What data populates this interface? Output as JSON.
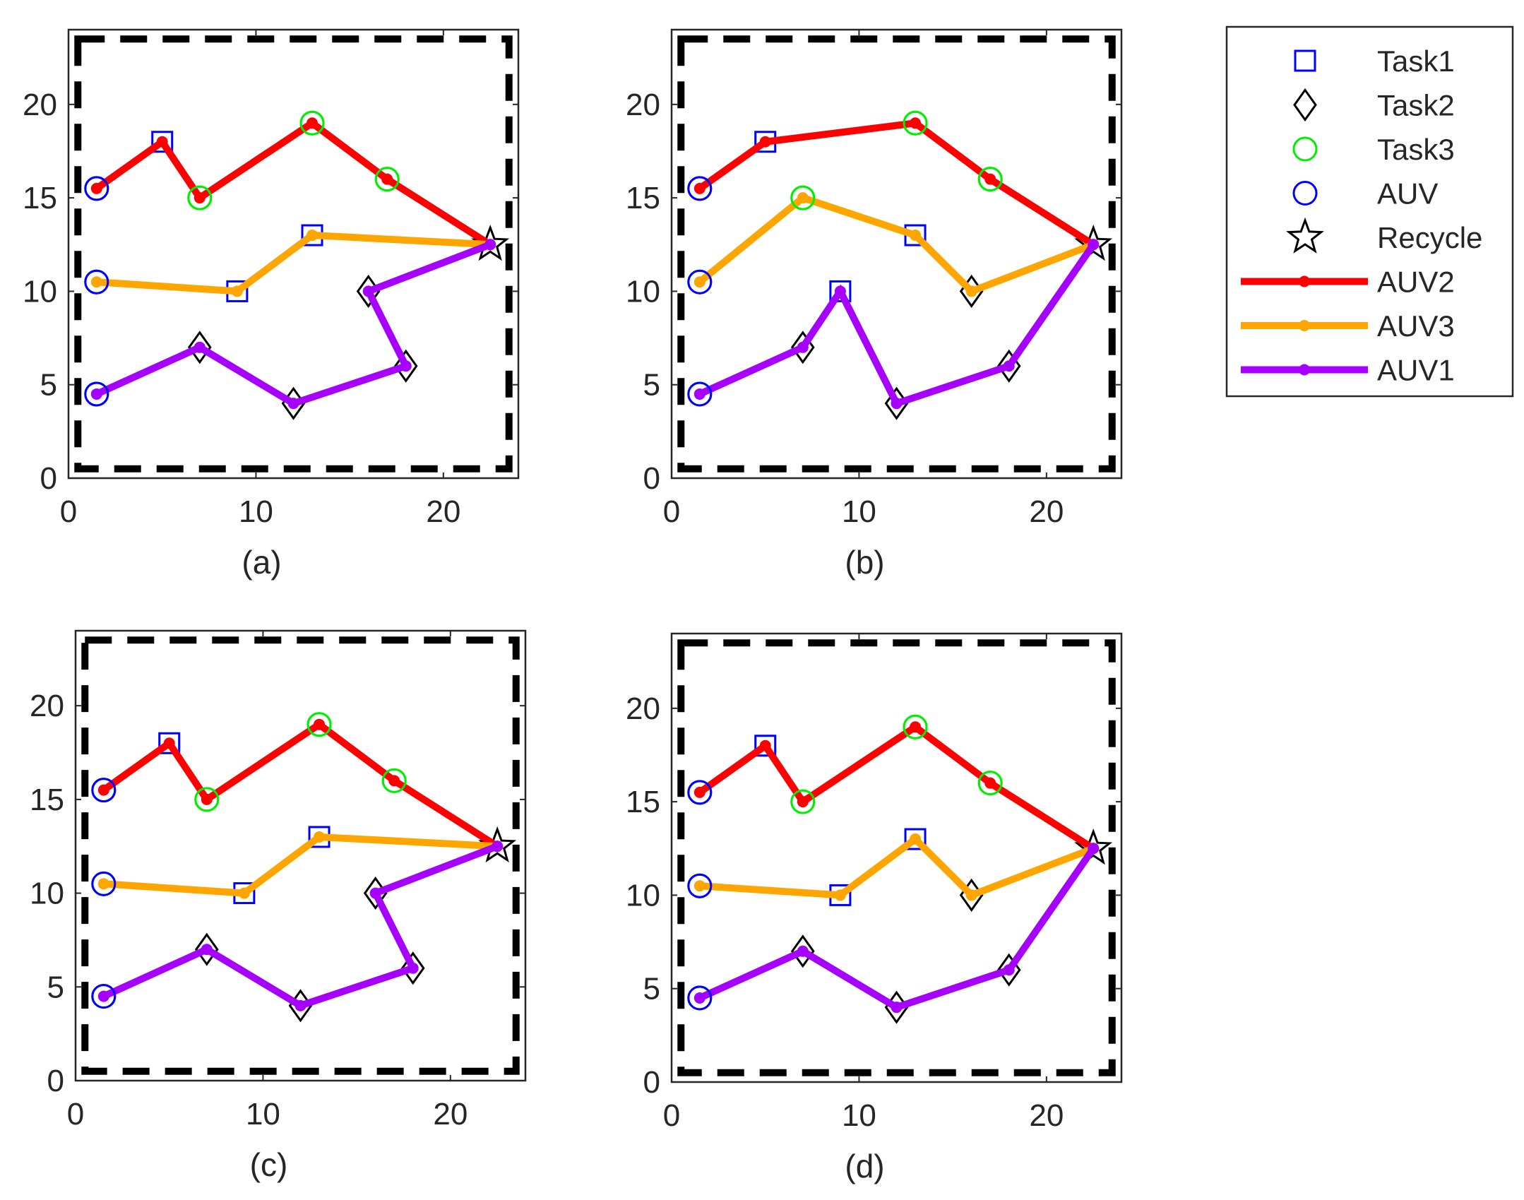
{
  "chart_data": {
    "type": "line",
    "title": "",
    "grid": false,
    "legend_position": "top-right",
    "colors": {
      "auv2": "#ff0000",
      "auv3": "#ffa500",
      "auv1": "#a600ff",
      "task1": "#0000ff",
      "task2": "#000000",
      "task3": "#00ee00",
      "auv_marker": "#0000ff",
      "recycle": "#000000",
      "boundary": "#000000"
    },
    "legend": [
      {
        "label": "Task1",
        "kind": "marker",
        "marker": "square",
        "color": "#0000ff"
      },
      {
        "label": "Task2",
        "kind": "marker",
        "marker": "diamond",
        "color": "#000000"
      },
      {
        "label": "Task3",
        "kind": "marker",
        "marker": "circle",
        "color": "#00ee00"
      },
      {
        "label": "AUV",
        "kind": "marker",
        "marker": "circle",
        "color": "#0000ff"
      },
      {
        "label": "Recycle",
        "kind": "marker",
        "marker": "star",
        "color": "#000000"
      },
      {
        "label": "AUV2",
        "kind": "line",
        "color": "#ff0000"
      },
      {
        "label": "AUV3",
        "kind": "line",
        "color": "#ffa500"
      },
      {
        "label": "AUV1",
        "kind": "line",
        "color": "#a600ff"
      }
    ],
    "panels": [
      {
        "label": "(a)",
        "xlim": [
          0,
          24
        ],
        "ylim": [
          0,
          24
        ],
        "xticks": [
          0,
          10,
          20
        ],
        "yticks": [
          0,
          5,
          10,
          15,
          20
        ],
        "boundary": {
          "x": [
            0.5,
            23.5
          ],
          "y": [
            0.5,
            23.5
          ]
        },
        "series": [
          {
            "name": "AUV2",
            "points": [
              [
                1.5,
                15.5
              ],
              [
                5,
                18
              ],
              [
                7,
                15
              ],
              [
                13,
                19
              ],
              [
                17,
                16
              ],
              [
                22.5,
                12.5
              ]
            ]
          },
          {
            "name": "AUV3",
            "points": [
              [
                1.5,
                10.5
              ],
              [
                9,
                10
              ],
              [
                13,
                13
              ],
              [
                22.5,
                12.5
              ]
            ]
          },
          {
            "name": "AUV1",
            "points": [
              [
                1.5,
                4.5
              ],
              [
                7,
                7
              ],
              [
                12,
                4
              ],
              [
                18,
                6
              ],
              [
                16,
                10
              ],
              [
                22.5,
                12.5
              ]
            ]
          }
        ]
      },
      {
        "label": "(b)",
        "xlim": [
          0,
          24
        ],
        "ylim": [
          0,
          24
        ],
        "xticks": [
          0,
          10,
          20
        ],
        "yticks": [
          0,
          5,
          10,
          15,
          20
        ],
        "boundary": {
          "x": [
            0.5,
            23.5
          ],
          "y": [
            0.5,
            23.5
          ]
        },
        "series": [
          {
            "name": "AUV2",
            "points": [
              [
                1.5,
                15.5
              ],
              [
                5,
                18
              ],
              [
                13,
                19
              ],
              [
                17,
                16
              ],
              [
                22.5,
                12.5
              ]
            ]
          },
          {
            "name": "AUV3",
            "points": [
              [
                1.5,
                10.5
              ],
              [
                7,
                15
              ],
              [
                13,
                13
              ],
              [
                16,
                10
              ],
              [
                22.5,
                12.5
              ]
            ]
          },
          {
            "name": "AUV1",
            "points": [
              [
                1.5,
                4.5
              ],
              [
                7,
                7
              ],
              [
                9,
                10
              ],
              [
                12,
                4
              ],
              [
                18,
                6
              ],
              [
                22.5,
                12.5
              ]
            ]
          }
        ]
      },
      {
        "label": "(c)",
        "xlim": [
          0,
          24
        ],
        "ylim": [
          0,
          24
        ],
        "xticks": [
          0,
          10,
          20
        ],
        "yticks": [
          0,
          5,
          10,
          15,
          20
        ],
        "boundary": {
          "x": [
            0.5,
            23.5
          ],
          "y": [
            0.5,
            23.5
          ]
        },
        "series": [
          {
            "name": "AUV2",
            "points": [
              [
                1.5,
                15.5
              ],
              [
                5,
                18
              ],
              [
                7,
                15
              ],
              [
                13,
                19
              ],
              [
                17,
                16
              ],
              [
                22.5,
                12.5
              ]
            ]
          },
          {
            "name": "AUV3",
            "points": [
              [
                1.5,
                10.5
              ],
              [
                9,
                10
              ],
              [
                13,
                13
              ],
              [
                22.5,
                12.5
              ]
            ]
          },
          {
            "name": "AUV1",
            "points": [
              [
                1.5,
                4.5
              ],
              [
                7,
                7
              ],
              [
                12,
                4
              ],
              [
                18,
                6
              ],
              [
                16,
                10
              ],
              [
                22.5,
                12.5
              ]
            ]
          }
        ]
      },
      {
        "label": "(d)",
        "xlim": [
          0,
          24
        ],
        "ylim": [
          0,
          24
        ],
        "xticks": [
          0,
          10,
          20
        ],
        "yticks": [
          0,
          5,
          10,
          15,
          20
        ],
        "boundary": {
          "x": [
            0.5,
            23.5
          ],
          "y": [
            0.5,
            23.5
          ]
        },
        "series": [
          {
            "name": "AUV2",
            "points": [
              [
                1.5,
                15.5
              ],
              [
                5,
                18
              ],
              [
                7,
                15
              ],
              [
                13,
                19
              ],
              [
                17,
                16
              ],
              [
                22.5,
                12.5
              ]
            ]
          },
          {
            "name": "AUV3",
            "points": [
              [
                1.5,
                10.5
              ],
              [
                9,
                10
              ],
              [
                13,
                13
              ],
              [
                16,
                10
              ],
              [
                22.5,
                12.5
              ]
            ]
          },
          {
            "name": "AUV1",
            "points": [
              [
                1.5,
                4.5
              ],
              [
                7,
                7
              ],
              [
                12,
                4
              ],
              [
                18,
                6
              ],
              [
                22.5,
                12.5
              ]
            ]
          }
        ]
      }
    ],
    "markers": {
      "task1": [
        [
          5,
          18
        ],
        [
          9,
          10
        ],
        [
          13,
          13
        ]
      ],
      "task2": [
        [
          7,
          7
        ],
        [
          12,
          4
        ],
        [
          16,
          10
        ],
        [
          18,
          6
        ]
      ],
      "task3": [
        [
          7,
          15
        ],
        [
          13,
          19
        ],
        [
          17,
          16
        ]
      ],
      "auv": [
        [
          1.5,
          15.5
        ],
        [
          1.5,
          10.5
        ],
        [
          1.5,
          4.5
        ]
      ],
      "recycle": [
        [
          22.5,
          12.5
        ]
      ]
    }
  }
}
